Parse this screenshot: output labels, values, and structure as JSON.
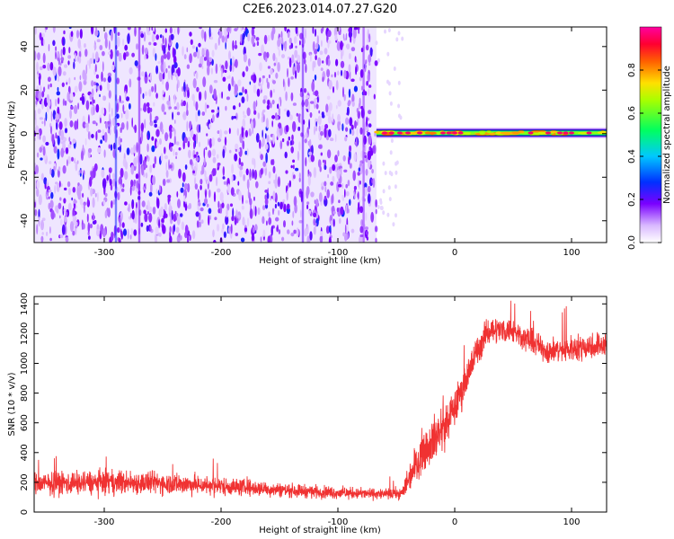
{
  "title": "C2E6.2023.014.07.27.G20",
  "colors": {
    "snr_line": "#f03232",
    "frame": "#000000"
  },
  "chart_data": [
    {
      "type": "heatmap",
      "xlabel": "Height of straight line (km)",
      "ylabel": "Frequency (Hz)",
      "xlim": [
        -360,
        130
      ],
      "ylim": [
        -50,
        49
      ],
      "x_ticks": [
        -300,
        -200,
        -100,
        0,
        100
      ],
      "y_ticks": [
        -40,
        -20,
        0,
        20,
        40
      ],
      "colorbar": {
        "label": "Normalized spectral amplitude",
        "range": [
          0,
          1
        ],
        "ticks": [
          "0.0",
          "0.2",
          "0.4",
          "0.6",
          "0.8"
        ],
        "colormap": "white-violet-blue-cyan-green-yellow-red-magenta"
      },
      "noise_region_x": [
        -360,
        -67
      ],
      "carrier_band": {
        "x": [
          -67,
          130
        ],
        "frequency_hz": 0,
        "peak_amplitude": 1.0
      }
    },
    {
      "type": "line",
      "xlabel": "Height of straight line (km)",
      "ylabel": "SNR (10 * v/v)",
      "xlim": [
        -360,
        130
      ],
      "ylim": [
        0,
        1450
      ],
      "x_ticks": [
        -300,
        -200,
        -100,
        0,
        100
      ],
      "y_ticks": [
        0,
        200,
        400,
        600,
        800,
        1000,
        1200,
        1400
      ],
      "series": [
        {
          "color": "#f03232",
          "x": [
            -360,
            -300,
            -250,
            -200,
            -150,
            -100,
            -60,
            -45,
            -40,
            -30,
            -20,
            -10,
            0,
            10,
            20,
            30,
            50,
            80,
            100,
            130
          ],
          "mean": [
            190,
            200,
            195,
            175,
            150,
            130,
            120,
            125,
            220,
            380,
            480,
            560,
            700,
            900,
            1100,
            1230,
            1220,
            1080,
            1100,
            1130
          ],
          "spread": [
            110,
            120,
            110,
            90,
            70,
            60,
            50,
            60,
            150,
            200,
            220,
            250,
            180,
            180,
            150,
            130,
            120,
            120,
            130,
            130
          ]
        }
      ]
    }
  ]
}
